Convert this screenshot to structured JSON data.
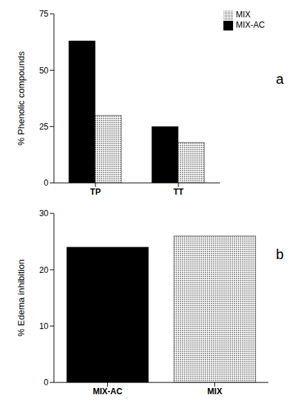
{
  "chart_data": [
    {
      "type": "bar",
      "annotation": "a",
      "y_label": "% Phenolic compounds",
      "categories": [
        "TP",
        "TT"
      ],
      "series": [
        {
          "name": "MIX-AC",
          "color": "#000000",
          "values": [
            63,
            25
          ]
        },
        {
          "name": "MIX",
          "color": "#999999",
          "values": [
            30,
            18
          ]
        }
      ],
      "ylim": [
        0,
        75
      ],
      "yticks": [
        0,
        25,
        50,
        75
      ],
      "grid": false,
      "legend": "upper right"
    },
    {
      "type": "bar",
      "annotation": "b",
      "y_label": "% Edema inhibition",
      "categories": [
        "MIX-AC",
        "MIX"
      ],
      "values": [
        24,
        26
      ],
      "colors": [
        "#000000",
        "#999999"
      ],
      "ylim": [
        0,
        30
      ],
      "yticks": [
        0,
        10,
        20,
        30
      ],
      "grid": false
    }
  ]
}
